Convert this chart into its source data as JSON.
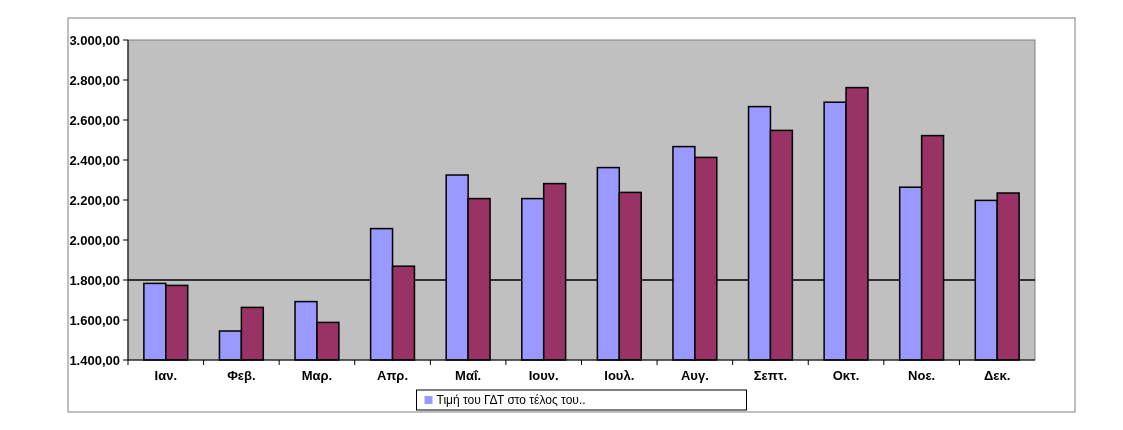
{
  "chart_data": {
    "type": "bar",
    "categories": [
      "Ιαν.",
      "Φεβ.",
      "Μαρ.",
      "Απρ.",
      "Μαΐ.",
      "Ιουν.",
      "Ιουλ.",
      "Αυγ.",
      "Σεπτ.",
      "Οκτ.",
      "Νοε.",
      "Δεκ."
    ],
    "series": [
      {
        "name": "Τιμή του ΓΔΤ στο τέλος του..",
        "color": "#9999ff",
        "values": [
          1783,
          1545,
          1692,
          2057,
          2325,
          2207,
          2362,
          2467,
          2667,
          2689,
          2264,
          2198
        ]
      },
      {
        "color": "#993366",
        "values": [
          1773,
          1663,
          1588,
          1869,
          2207,
          2282,
          2238,
          2413,
          2548,
          2762,
          2522,
          2235
        ]
      }
    ],
    "ylim": [
      1400,
      3000
    ],
    "yticks": [
      {
        "value": 1400,
        "label": "1.400,00"
      },
      {
        "value": 1600,
        "label": "1.600,00"
      },
      {
        "value": 1800,
        "label": "1.800,00"
      },
      {
        "value": 2000,
        "label": "2.000,00"
      },
      {
        "value": 2200,
        "label": "2.200,00"
      },
      {
        "value": 2400,
        "label": "2.400,00"
      },
      {
        "value": 2600,
        "label": "2.600,00"
      },
      {
        "value": 2800,
        "label": "2.800,00"
      },
      {
        "value": 3000,
        "label": "3.000,00"
      }
    ],
    "ref_lines": [
      {
        "axis": "y",
        "value": 1800,
        "color": "#000000"
      }
    ],
    "legend": "bottom"
  }
}
